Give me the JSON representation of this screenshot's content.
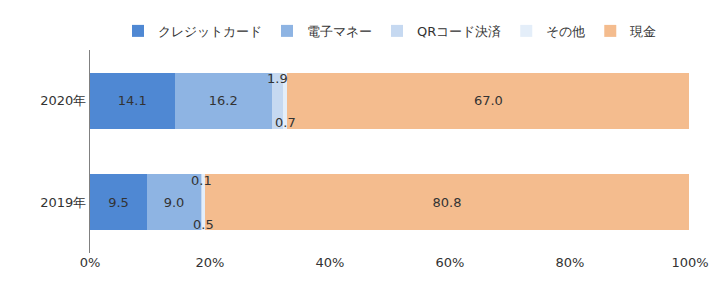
{
  "chart_data": {
    "type": "bar",
    "orientation": "horizontal",
    "stacked": true,
    "data_labels": true,
    "grid": false,
    "legend": "top",
    "categories": [
      "2020年",
      "2019年"
    ],
    "series": [
      {
        "name": "クレジットカード",
        "color": "#4f88d3",
        "values": [
          14.1,
          9.5
        ],
        "value_labels": [
          "14.1",
          "9.5"
        ]
      },
      {
        "name": "電子マネー",
        "color": "#8eb4e3",
        "values": [
          16.2,
          9.0
        ],
        "value_labels": [
          "16.2",
          "9.0"
        ]
      },
      {
        "name": "QRコード決済",
        "color": "#c6d9f1",
        "values": [
          1.9,
          0.1
        ],
        "value_labels": [
          "1.9",
          "0.1"
        ]
      },
      {
        "name": "その他",
        "color": "#e4eef9",
        "values": [
          0.7,
          0.5
        ],
        "value_labels": [
          "0.7",
          "0.5"
        ]
      },
      {
        "name": "現金",
        "color": "#f4bc8e",
        "values": [
          67.0,
          80.8
        ],
        "value_labels": [
          "67.0",
          "80.8"
        ]
      }
    ],
    "xlim": [
      0,
      100
    ],
    "xticks": [
      {
        "value": 0,
        "label": "0%"
      },
      {
        "value": 20,
        "label": "20%"
      },
      {
        "value": 40,
        "label": "40%"
      },
      {
        "value": 60,
        "label": "60%"
      },
      {
        "value": 80,
        "label": "80%"
      },
      {
        "value": 100,
        "label": "100%"
      }
    ]
  }
}
